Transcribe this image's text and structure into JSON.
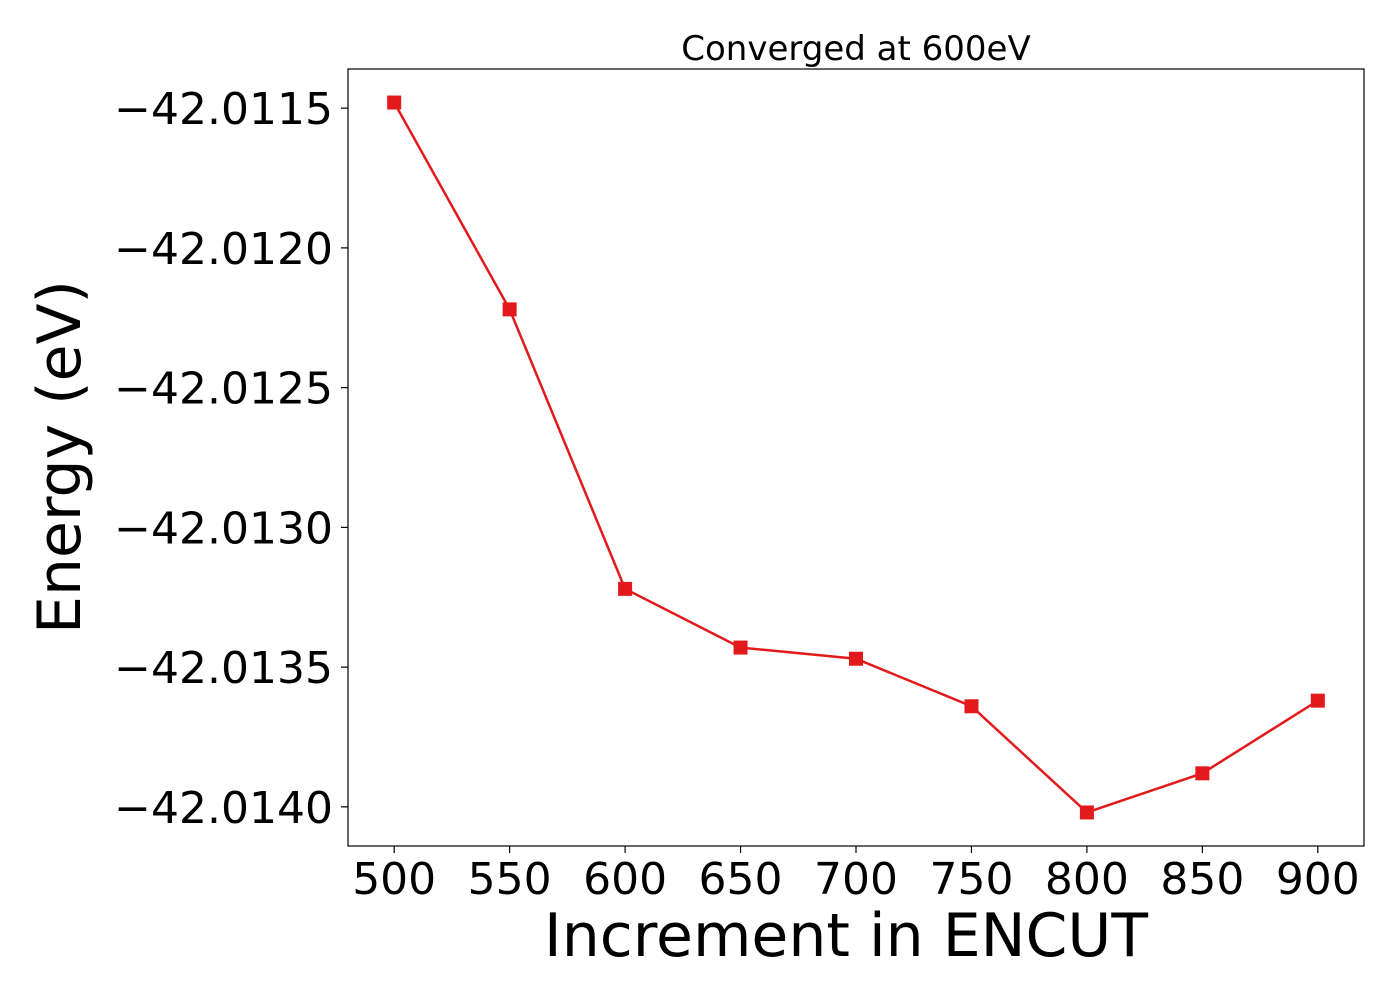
{
  "chart_data": {
    "type": "line",
    "title": "Converged at 600eV",
    "xlabel": "Increment in ENCUT",
    "ylabel": "Energy (eV)",
    "x": [
      500,
      550,
      600,
      650,
      700,
      750,
      800,
      850,
      900
    ],
    "xlim": [
      480,
      920
    ],
    "ylim": [
      -42.01414,
      -42.01136
    ],
    "x_ticks": [
      500,
      550,
      600,
      650,
      700,
      750,
      800,
      850,
      900
    ],
    "y_ticks": [
      -42.0115,
      -42.012,
      -42.0125,
      -42.013,
      -42.0135,
      -42.014
    ],
    "y_tick_labels": [
      "−42.0115",
      "−42.0120",
      "−42.0125",
      "−42.0130",
      "−42.0135",
      "−42.0140"
    ],
    "grid": false,
    "marker": "square",
    "series": [
      {
        "color": "#e31a1c",
        "values": [
          -42.01148,
          -42.01222,
          -42.01322,
          -42.01343,
          -42.01347,
          -42.01364,
          -42.01402,
          -42.01388,
          -42.01362
        ]
      }
    ]
  }
}
